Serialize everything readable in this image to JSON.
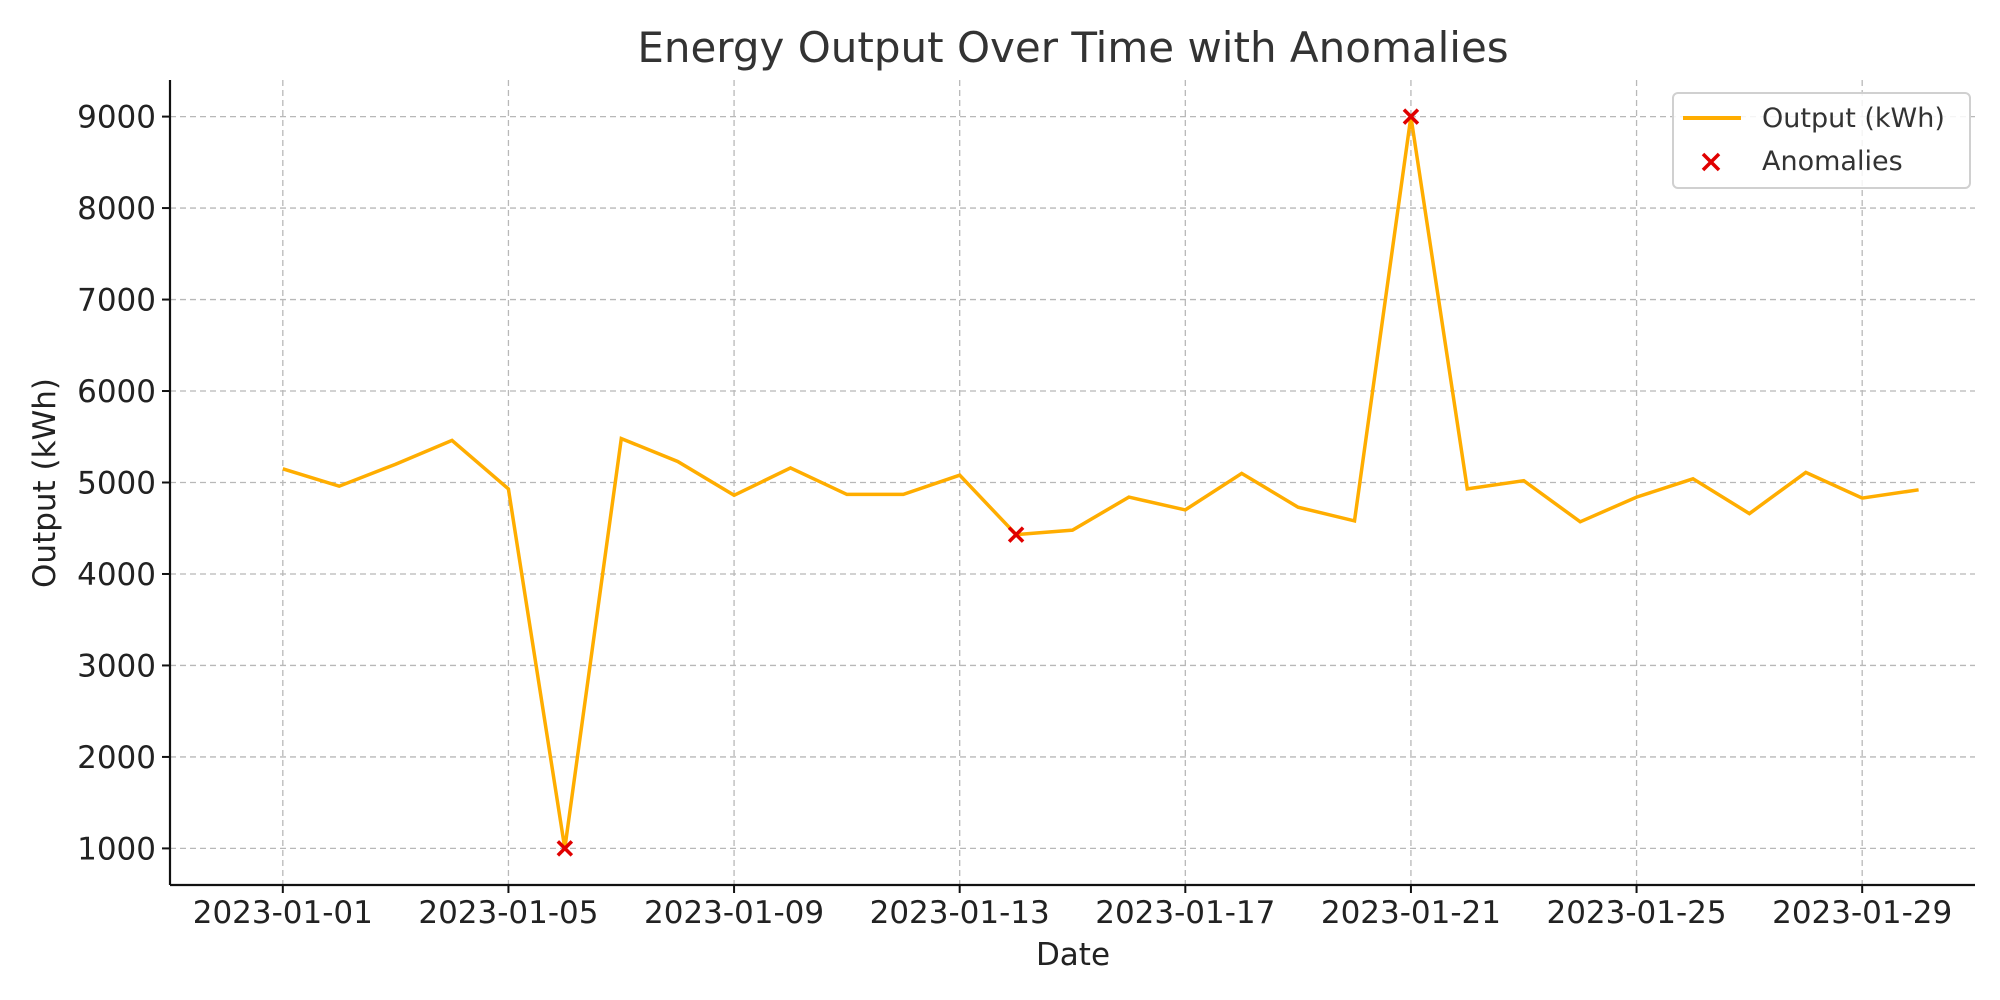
{
  "chart_data": {
    "type": "line",
    "title": "Energy Output Over Time with Anomalies",
    "xlabel": "Date",
    "ylabel": "Output (kWh)",
    "x": [
      "2023-01-01",
      "2023-01-02",
      "2023-01-03",
      "2023-01-04",
      "2023-01-05",
      "2023-01-06",
      "2023-01-07",
      "2023-01-08",
      "2023-01-09",
      "2023-01-10",
      "2023-01-11",
      "2023-01-12",
      "2023-01-13",
      "2023-01-14",
      "2023-01-15",
      "2023-01-16",
      "2023-01-17",
      "2023-01-18",
      "2023-01-19",
      "2023-01-20",
      "2023-01-21",
      "2023-01-22",
      "2023-01-23",
      "2023-01-24",
      "2023-01-25",
      "2023-01-26",
      "2023-01-27",
      "2023-01-28",
      "2023-01-29",
      "2023-01-30"
    ],
    "xlim": [
      "2022-12-30",
      "2023-01-31"
    ],
    "ylim": [
      600,
      9400
    ],
    "xticks": [
      "2023-01-01",
      "2023-01-05",
      "2023-01-09",
      "2023-01-13",
      "2023-01-17",
      "2023-01-21",
      "2023-01-25",
      "2023-01-29"
    ],
    "yticks": [
      1000,
      2000,
      3000,
      4000,
      5000,
      6000,
      7000,
      8000,
      9000
    ],
    "grid": true,
    "legend_position": "top-right",
    "series": [
      {
        "name": "Output (kWh)",
        "type": "line",
        "color": "#FFAD00",
        "values": [
          5150,
          4960,
          5200,
          5460,
          4930,
          1000,
          5480,
          5230,
          4860,
          5160,
          4870,
          4870,
          5080,
          4430,
          4480,
          4840,
          4700,
          5100,
          4730,
          4580,
          9000,
          4930,
          5020,
          4570,
          4840,
          5040,
          4660,
          5110,
          4830,
          4920
        ]
      },
      {
        "name": "Anomalies",
        "type": "scatter",
        "marker": "x",
        "color": "#E00000",
        "x": [
          "2023-01-06",
          "2023-01-14",
          "2023-01-21"
        ],
        "values": [
          1000,
          4430,
          9000
        ]
      }
    ]
  }
}
